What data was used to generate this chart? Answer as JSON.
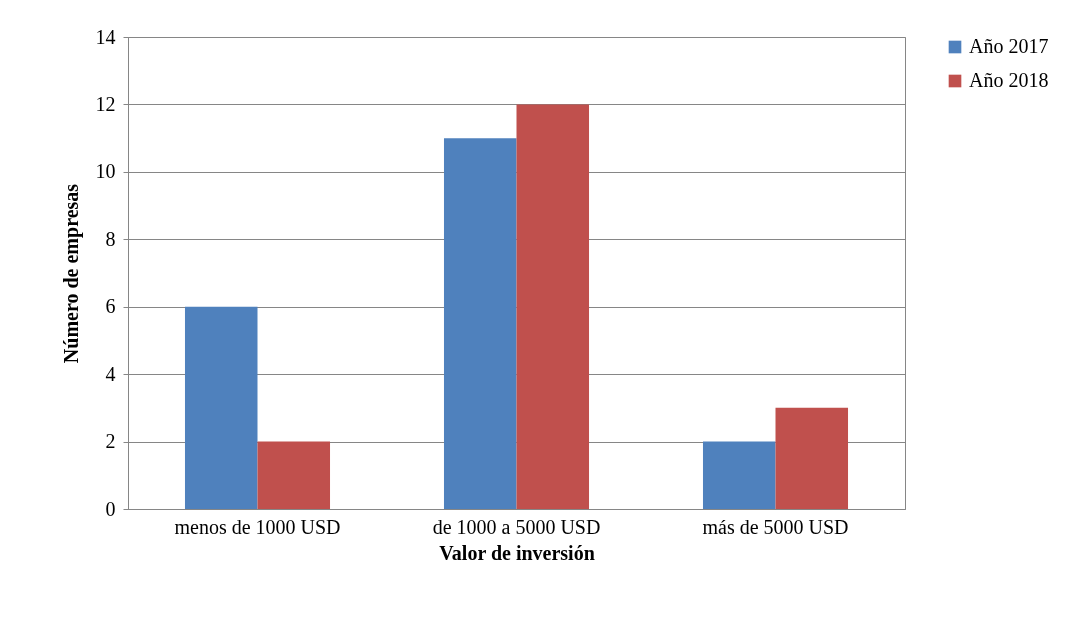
{
  "chart_data": {
    "type": "bar",
    "xlabel": "Valor de inversión",
    "ylabel": "Número de empresas",
    "categories": [
      "menos de 1000 USD",
      "de 1000 a 5000 USD",
      "más de 5000 USD"
    ],
    "series": [
      {
        "name": "Año 2017",
        "color": "#4f81bd",
        "values": [
          6,
          11,
          2
        ]
      },
      {
        "name": "Año 2018",
        "color": "#c0504d",
        "values": [
          2,
          12,
          3
        ]
      }
    ],
    "ylim": [
      0,
      14
    ],
    "yticks": [
      0,
      2,
      4,
      6,
      8,
      10,
      12,
      14
    ],
    "grid": "y",
    "legend": "right"
  }
}
